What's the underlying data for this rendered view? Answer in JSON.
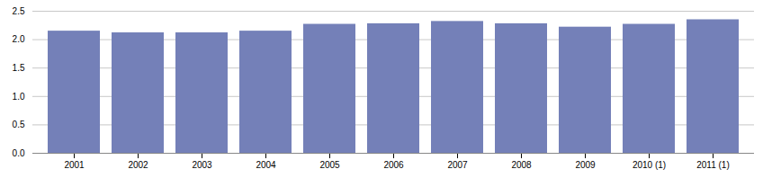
{
  "chart_data": {
    "type": "bar",
    "categories": [
      "2001",
      "2002",
      "2003",
      "2004",
      "2005",
      "2006",
      "2007",
      "2008",
      "2009",
      "2010 (1)",
      "2011 (1)"
    ],
    "values": [
      2.15,
      2.12,
      2.12,
      2.15,
      2.27,
      2.28,
      2.32,
      2.28,
      2.22,
      2.27,
      2.35
    ],
    "color": "#7480b8",
    "ylim": [
      0.0,
      2.5
    ],
    "yticks": [
      {
        "value": 0,
        "label": "0.0"
      },
      0.5,
      {
        "value": 1,
        "label": "1.0"
      },
      1.5,
      {
        "value": 2,
        "label": "2.0"
      },
      2.5
    ],
    "grid": true
  }
}
